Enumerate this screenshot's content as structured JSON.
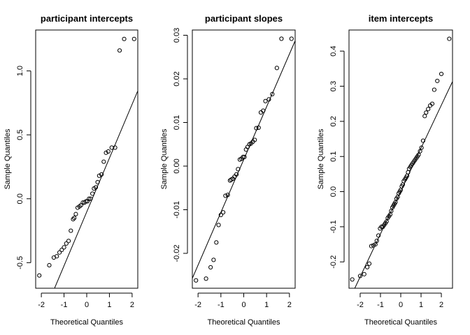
{
  "chart_data": [
    {
      "type": "scatter",
      "title": "participant intercepts",
      "xlabel": "Theoretical Quantiles",
      "ylabel": "Sample Quantiles",
      "xlim": [
        -2.25,
        2.25
      ],
      "ylim": [
        -0.7,
        1.32
      ],
      "xticks": [
        -2,
        -1,
        0,
        1,
        2
      ],
      "xtick_labels": [
        "-2",
        "-1",
        "0",
        "1",
        "2"
      ],
      "yticks": [
        -0.5,
        0.0,
        0.5,
        1.0
      ],
      "ytick_labels": [
        "-0.5",
        "0.0",
        "0.5",
        "1.0"
      ],
      "reference_line": {
        "slope": 0.421,
        "intercept": -0.103
      },
      "points": {
        "x": [
          -2.09,
          -1.65,
          -1.45,
          -1.32,
          -1.2,
          -1.1,
          -1.0,
          -0.9,
          -0.8,
          -0.7,
          -0.6,
          -0.55,
          -0.48,
          -0.4,
          -0.32,
          -0.25,
          -0.17,
          -0.1,
          -0.03,
          0.03,
          0.1,
          0.17,
          0.25,
          0.32,
          0.4,
          0.48,
          0.55,
          0.65,
          0.75,
          0.85,
          0.95,
          1.1,
          1.25,
          1.45,
          1.65,
          2.09
        ],
        "y": [
          -0.6,
          -0.52,
          -0.46,
          -0.45,
          -0.42,
          -0.4,
          -0.38,
          -0.35,
          -0.33,
          -0.25,
          -0.16,
          -0.15,
          -0.12,
          -0.07,
          -0.06,
          -0.05,
          -0.03,
          -0.03,
          -0.02,
          -0.02,
          0.0,
          0.0,
          0.04,
          0.08,
          0.09,
          0.13,
          0.18,
          0.19,
          0.29,
          0.36,
          0.37,
          0.4,
          0.4,
          1.16,
          1.25,
          1.25
        ]
      }
    },
    {
      "type": "scatter",
      "title": "participant slopes",
      "xlabel": "Theoretical Quantiles",
      "ylabel": "Sample Quantiles",
      "xlim": [
        -2.25,
        2.25
      ],
      "ylim": [
        -0.028,
        0.0312
      ],
      "xticks": [
        -2,
        -1,
        0,
        1,
        2
      ],
      "xtick_labels": [
        "-2",
        "-1",
        "0",
        "1",
        "2"
      ],
      "yticks": [
        -0.02,
        -0.01,
        0.0,
        0.01,
        0.02,
        0.03
      ],
      "ytick_labels": [
        "-0.02",
        "-0.01",
        "0.00",
        "0.01",
        "0.02",
        "0.03"
      ],
      "reference_line": {
        "slope": 0.0121,
        "intercept": 0.0015
      },
      "points": {
        "x": [
          -2.09,
          -1.65,
          -1.45,
          -1.32,
          -1.2,
          -1.1,
          -1.0,
          -0.9,
          -0.8,
          -0.7,
          -0.6,
          -0.55,
          -0.48,
          -0.4,
          -0.32,
          -0.25,
          -0.17,
          -0.1,
          -0.03,
          0.03,
          0.1,
          0.17,
          0.25,
          0.32,
          0.4,
          0.48,
          0.55,
          0.65,
          0.75,
          0.85,
          0.95,
          1.1,
          1.25,
          1.45,
          1.65,
          2.09
        ],
        "y": [
          -0.0262,
          -0.0258,
          -0.0232,
          -0.0215,
          -0.0175,
          -0.0135,
          -0.0112,
          -0.0106,
          -0.0068,
          -0.0066,
          -0.0033,
          -0.0031,
          -0.0029,
          -0.0024,
          -0.0019,
          -0.0007,
          0.0015,
          0.0017,
          0.0021,
          0.0021,
          0.0038,
          0.0044,
          0.005,
          0.0052,
          0.0056,
          0.006,
          0.0087,
          0.0088,
          0.0123,
          0.0127,
          0.0149,
          0.0153,
          0.0165,
          0.0225,
          0.0292,
          0.0292
        ]
      }
    },
    {
      "type": "scatter",
      "title": "item intercepts",
      "xlabel": "Theoretical Quantiles",
      "ylabel": "Sample Quantiles",
      "xlim": [
        -2.55,
        2.55
      ],
      "ylim": [
        -0.275,
        0.46
      ],
      "xticks": [
        -2,
        -1,
        0,
        1,
        2
      ],
      "xtick_labels": [
        "-2",
        "-1",
        "0",
        "1",
        "2"
      ],
      "yticks": [
        -0.2,
        -0.1,
        0.0,
        0.1,
        0.2,
        0.3,
        0.4
      ],
      "ytick_labels": [
        "-0.2",
        "-0.1",
        "0.0",
        "0.1",
        "0.2",
        "0.3",
        "0.4"
      ],
      "reference_line": {
        "slope": 0.1222,
        "intercept": 0.0018
      },
      "points": {
        "x": [
          -2.39,
          -2.0,
          -1.8,
          -1.65,
          -1.55,
          -1.45,
          -1.35,
          -1.25,
          -1.18,
          -1.1,
          -1.02,
          -0.95,
          -0.88,
          -0.82,
          -0.76,
          -0.7,
          -0.64,
          -0.58,
          -0.52,
          -0.47,
          -0.41,
          -0.36,
          -0.31,
          -0.26,
          -0.21,
          -0.15,
          -0.1,
          -0.05,
          0.0,
          0.05,
          0.1,
          0.15,
          0.21,
          0.26,
          0.31,
          0.36,
          0.41,
          0.47,
          0.52,
          0.58,
          0.64,
          0.7,
          0.76,
          0.82,
          0.88,
          0.95,
          1.02,
          1.1,
          1.18,
          1.25,
          1.35,
          1.45,
          1.55,
          1.65,
          1.8,
          2.0,
          2.39
        ],
        "y": [
          -0.25,
          -0.24,
          -0.235,
          -0.215,
          -0.205,
          -0.155,
          -0.153,
          -0.15,
          -0.14,
          -0.125,
          -0.105,
          -0.1,
          -0.1,
          -0.095,
          -0.09,
          -0.085,
          -0.075,
          -0.07,
          -0.065,
          -0.055,
          -0.045,
          -0.04,
          -0.035,
          -0.03,
          -0.02,
          -0.015,
          -0.005,
          0.0,
          0.005,
          0.015,
          0.02,
          0.03,
          0.035,
          0.04,
          0.045,
          0.055,
          0.065,
          0.07,
          0.075,
          0.08,
          0.085,
          0.09,
          0.095,
          0.1,
          0.105,
          0.115,
          0.125,
          0.145,
          0.215,
          0.225,
          0.235,
          0.245,
          0.25,
          0.29,
          0.315,
          0.335,
          0.435
        ]
      }
    }
  ]
}
